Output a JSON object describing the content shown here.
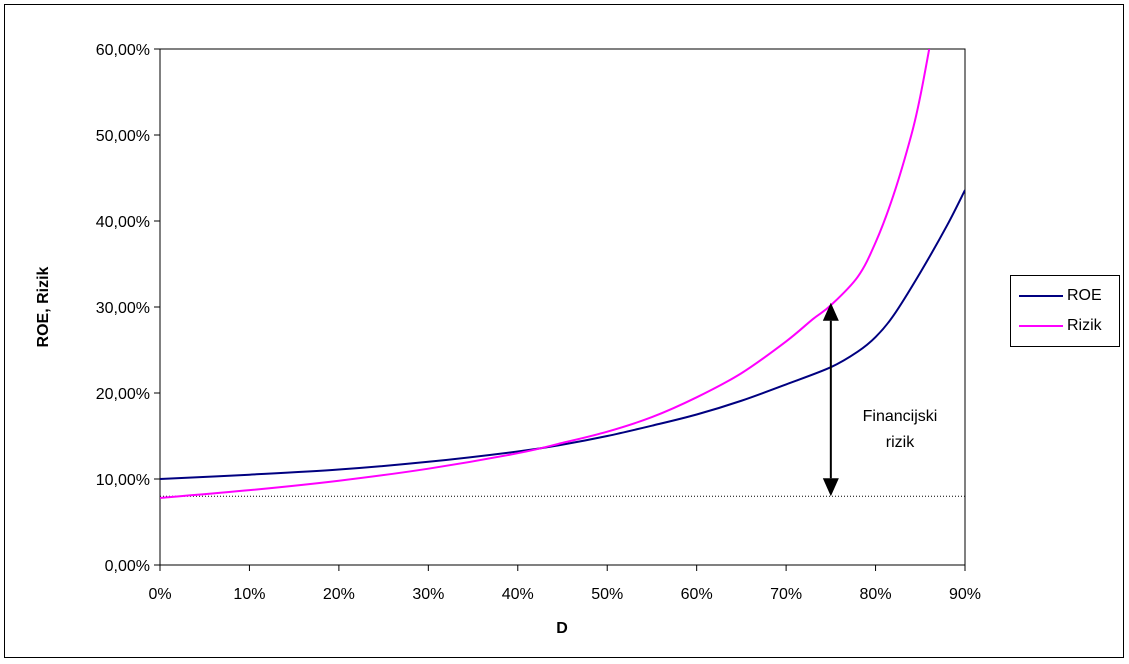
{
  "chart_data": {
    "type": "line",
    "title": "",
    "xlabel": "D",
    "ylabel": "ROE, Rizik",
    "xlim": [
      0,
      90
    ],
    "ylim": [
      0,
      60
    ],
    "x_ticks": [
      "0%",
      "10%",
      "20%",
      "30%",
      "40%",
      "50%",
      "60%",
      "70%",
      "80%",
      "90%"
    ],
    "y_ticks": [
      "0,00%",
      "10,00%",
      "20,00%",
      "30,00%",
      "40,00%",
      "50,00%",
      "60,00%"
    ],
    "grid": false,
    "legend_position": "right",
    "series": [
      {
        "name": "ROE",
        "color": "#000080",
        "x": [
          0,
          10,
          20,
          30,
          40,
          45,
          50,
          55,
          60,
          65,
          70,
          75,
          78,
          80,
          82,
          85,
          88,
          90
        ],
        "y": [
          10.0,
          10.5,
          11.1,
          12.0,
          13.2,
          14.0,
          15.0,
          16.2,
          17.5,
          19.1,
          21.0,
          23.0,
          24.8,
          26.5,
          29.0,
          34.0,
          39.5,
          43.6
        ]
      },
      {
        "name": "Rizik",
        "color": "#ff00ff",
        "x": [
          0,
          10,
          20,
          30,
          40,
          45,
          50,
          55,
          60,
          65,
          70,
          73,
          75,
          78,
          80,
          82,
          84,
          85,
          86
        ],
        "y": [
          7.8,
          8.7,
          9.8,
          11.2,
          13.0,
          14.2,
          15.5,
          17.2,
          19.5,
          22.3,
          26.0,
          28.6,
          30.2,
          33.5,
          37.5,
          43.0,
          50.0,
          54.5,
          60.0
        ]
      }
    ],
    "reference_line": {
      "y": 8.0,
      "style": "dotted"
    },
    "annotation": {
      "text_line1": "Financijski",
      "text_line2": "rizik",
      "arrow_x": 75,
      "arrow_y_from": 8.0,
      "arrow_y_to": 30.5
    }
  }
}
